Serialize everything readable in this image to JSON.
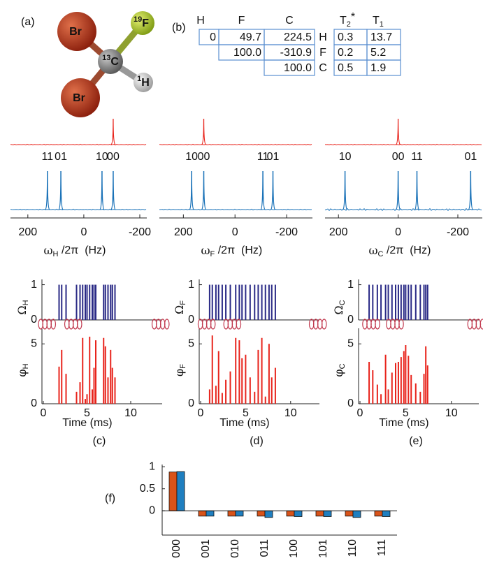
{
  "panel_labels": {
    "a": "(a)",
    "b": "(b)",
    "f": "(f)"
  },
  "molecule": {
    "atoms": [
      {
        "symbol": "Br"
      },
      {
        "symbol": "Br"
      },
      {
        "mass": "13",
        "symbol": "C"
      },
      {
        "mass": "19",
        "symbol": "F"
      },
      {
        "mass": "1",
        "symbol": "H"
      }
    ]
  },
  "table": {
    "columns": [
      "H",
      "F",
      "C"
    ],
    "coupling_rows": [
      [
        "0",
        "49.7",
        "224.5"
      ],
      [
        "100.0",
        "-310.9"
      ],
      [
        "100.0"
      ]
    ],
    "row_labels": [
      "H",
      "F",
      "C"
    ],
    "relaxation_headers": [
      {
        "symbol": "T",
        "sub": "2",
        "sup": "*"
      },
      {
        "symbol": "T",
        "sub": "1"
      }
    ],
    "relaxation_rows": [
      [
        "0.3",
        "13.7"
      ],
      [
        "0.2",
        "5.2"
      ],
      [
        "0.5",
        "1.9"
      ]
    ]
  },
  "spectra": [
    {
      "xlim": [
        262,
        -225
      ],
      "xticks": [
        200,
        0,
        -200
      ],
      "reference_peak": -105,
      "peaks": [
        130,
        82,
        -65,
        -105
      ],
      "peak_labels": [
        "11",
        "01",
        "10",
        "00"
      ],
      "xlabel": {
        "symbol": "ω",
        "sub": "H",
        "rest": " /2π  (Hz)"
      }
    },
    {
      "xlim": [
        293,
        -300
      ],
      "xticks": [
        200,
        0,
        -200
      ],
      "reference_peak": 121,
      "peaks": [
        168,
        121,
        -108,
        -147
      ],
      "peak_labels": [
        "10",
        "00",
        "11",
        "01"
      ],
      "xlabel": {
        "symbol": "ω",
        "sub": "F",
        "rest": " /2π  (Hz)"
      }
    },
    {
      "xlim": [
        245,
        -282
      ],
      "xticks": [
        200,
        0,
        -200
      ],
      "reference_peak": 0,
      "peaks": [
        178,
        0,
        -63,
        -243
      ],
      "peak_labels": [
        "10",
        "00",
        "11",
        "01"
      ],
      "xlabel": {
        "symbol": "ω",
        "sub": "C",
        "rest": " /2π  (Hz)"
      }
    }
  ],
  "spectrum_colors": {
    "reference": "#e8241c",
    "spectrum": "#1a72b8"
  },
  "pulses": [
    {
      "label": "(c)",
      "xlim": [
        0,
        13.6
      ],
      "xticks": [
        0,
        5,
        10
      ],
      "xlabel": "Time (ms)",
      "omega_ylim": [
        0,
        1.15
      ],
      "omega_yticks": [
        0,
        1
      ],
      "phi_ylim": [
        0,
        6.3
      ],
      "phi_yticks": [
        0,
        5
      ],
      "omega_label": {
        "symbol": "Ω",
        "sub": "H"
      },
      "phi_label": {
        "symbol": "φ",
        "sub": "H"
      },
      "pulse_times": [
        0.5,
        3.5,
        13.5
      ],
      "t": [
        1.8,
        2.1,
        2.6,
        3.8,
        4.2,
        4.5,
        4.8,
        5.0,
        5.3,
        5.6,
        5.8,
        6.0,
        6.9,
        7.1,
        7.4,
        7.7,
        7.9,
        8.2
      ],
      "omega": [
        1,
        1,
        1,
        1,
        1,
        1,
        1,
        1,
        1,
        1,
        1,
        1,
        1,
        1,
        1,
        1,
        1,
        1
      ],
      "phi": [
        3.1,
        4.5,
        2.5,
        1.0,
        1.8,
        5.5,
        0.4,
        0.8,
        5.6,
        1.2,
        3.0,
        5.3,
        5.5,
        4.8,
        2.2,
        4.5,
        3.0,
        2.2
      ]
    },
    {
      "label": "(d)",
      "xlim": [
        0,
        13.2
      ],
      "xticks": [
        0,
        5,
        10
      ],
      "xlabel": "Time (ms)",
      "omega_ylim": [
        0,
        1.15
      ],
      "omega_yticks": [
        0,
        1
      ],
      "phi_ylim": [
        0,
        6.3
      ],
      "phi_yticks": [
        0,
        5
      ],
      "omega_label": {
        "symbol": "Ω",
        "sub": "F"
      },
      "phi_label": {
        "symbol": "φ",
        "sub": "F"
      },
      "pulse_times": [
        0.75,
        3.6,
        13.1
      ],
      "t": [
        1.0,
        1.3,
        1.7,
        2.0,
        2.4,
        2.8,
        3.3,
        3.9,
        4.3,
        4.6,
        5.0,
        5.5,
        6.0,
        6.4,
        6.8,
        7.2,
        7.6,
        7.9,
        8.3
      ],
      "omega": [
        1,
        1,
        1,
        1,
        1,
        1,
        1,
        1,
        1,
        1,
        1,
        1,
        1,
        1,
        1,
        1,
        1,
        1,
        1
      ],
      "phi": [
        1.2,
        5.7,
        1.5,
        4.4,
        0.9,
        2.0,
        2.7,
        5.5,
        5.3,
        3.8,
        4.1,
        2.2,
        1.0,
        4.5,
        5.5,
        0.6,
        5.0,
        2.2,
        3.0
      ]
    },
    {
      "label": "(e)",
      "xlim": [
        0,
        13.0
      ],
      "xticks": [
        0,
        5,
        10
      ],
      "xlabel": "Time (ms)",
      "omega_ylim": [
        0,
        1.15
      ],
      "omega_yticks": [
        0,
        1
      ],
      "phi_ylim": [
        0,
        6.3
      ],
      "phi_yticks": [
        0,
        5
      ],
      "omega_label": {
        "symbol": "Ω",
        "sub": "C"
      },
      "phi_label": {
        "symbol": "φ",
        "sub": "C"
      },
      "pulse_times": [
        1.3,
        3.9,
        12.8
      ],
      "t": [
        1.0,
        1.4,
        1.9,
        2.3,
        2.8,
        3.1,
        3.5,
        3.9,
        4.2,
        4.5,
        4.8,
        5.0,
        5.3,
        5.6,
        6.1,
        6.6,
        7.0,
        7.2,
        7.4
      ],
      "omega": [
        1,
        1,
        1,
        1,
        1,
        1,
        1,
        1,
        1,
        1,
        1,
        1,
        1,
        1,
        1,
        1,
        1,
        1,
        1
      ],
      "phi": [
        3.5,
        2.8,
        1.6,
        0.8,
        4.1,
        1.2,
        2.6,
        3.4,
        3.5,
        3.9,
        4.4,
        4.9,
        4.0,
        2.4,
        1.7,
        1.0,
        2.5,
        4.8,
        3.2
      ]
    }
  ],
  "pulse_colors": {
    "omega": "#2a2a86",
    "phi": "#e8241c"
  },
  "chart_data": {
    "type": "bar",
    "categories": [
      "000",
      "001",
      "010",
      "011",
      "100",
      "101",
      "110",
      "111"
    ],
    "series": [
      {
        "color": "#d95319",
        "values": [
          0.88,
          -0.12,
          -0.12,
          -0.12,
          -0.12,
          -0.12,
          -0.12,
          -0.12
        ]
      },
      {
        "color": "#1f7fc0",
        "values": [
          0.89,
          -0.12,
          -0.12,
          -0.15,
          -0.13,
          -0.13,
          -0.15,
          -0.13
        ]
      }
    ],
    "ylim": [
      -0.55,
      1.05
    ],
    "yticks": [
      0,
      0.5,
      1
    ]
  }
}
